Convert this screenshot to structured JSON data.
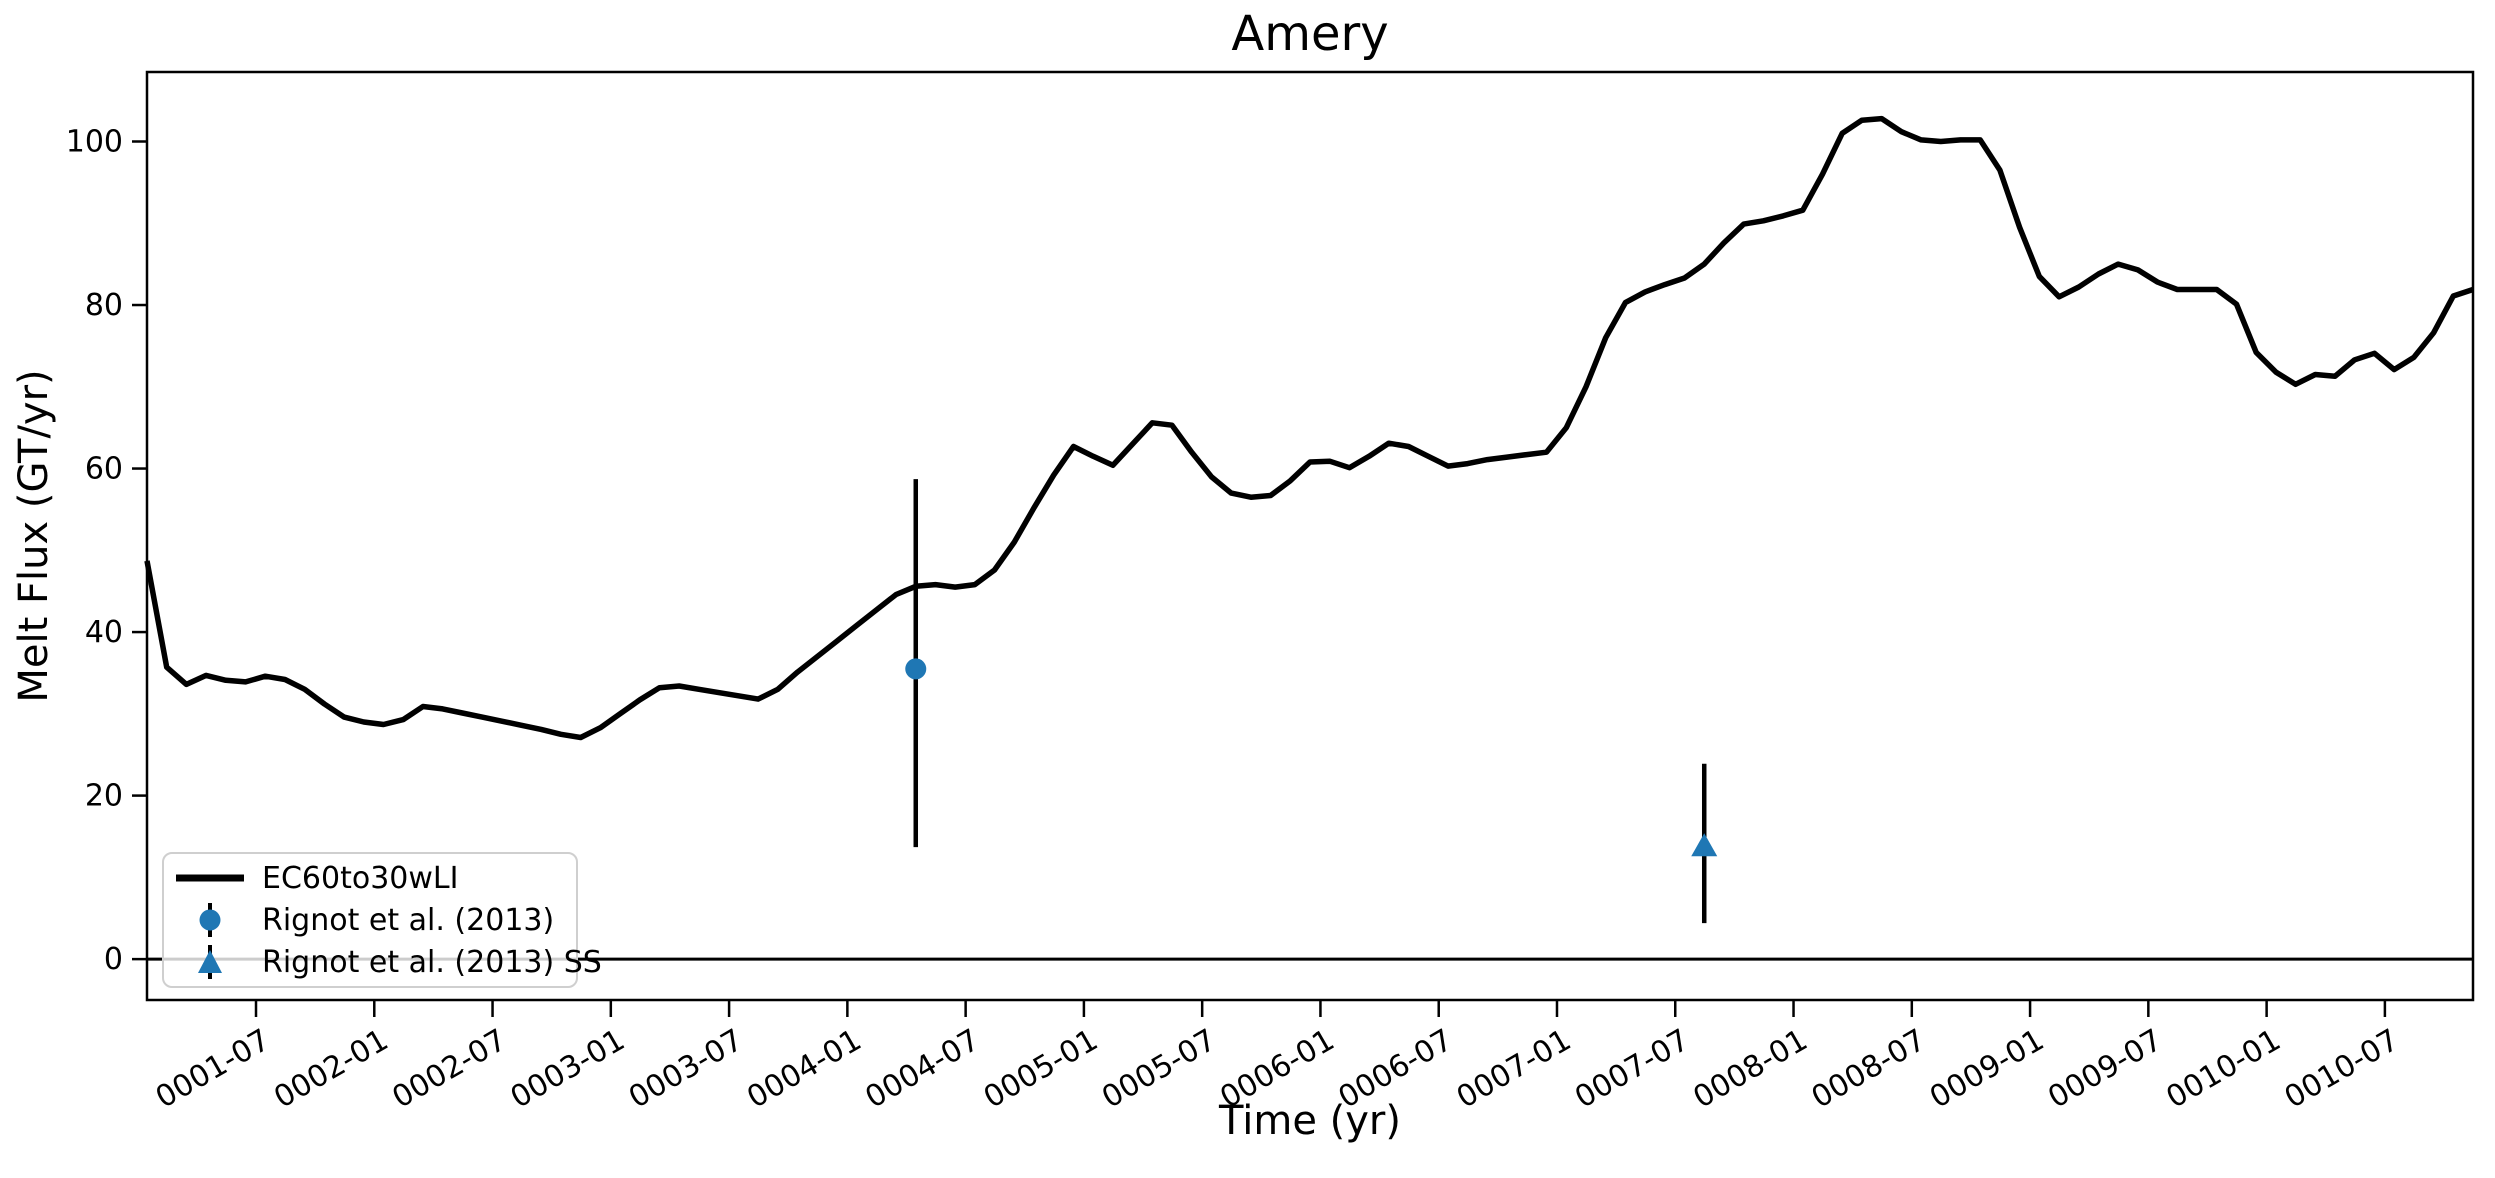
{
  "title": "Amery",
  "axes": {
    "xlabel": "Time (yr)",
    "ylabel": "Melt Flux (GT/yr)",
    "yticks": [
      0,
      20,
      40,
      60,
      80,
      100
    ],
    "xticks": [
      "0001-07",
      "0002-01",
      "0002-07",
      "0003-01",
      "0003-07",
      "0004-01",
      "0004-07",
      "0005-01",
      "0005-07",
      "0006-01",
      "0006-07",
      "0007-01",
      "0007-07",
      "0008-01",
      "0008-07",
      "0009-01",
      "0009-07",
      "0010-01",
      "0010-07"
    ]
  },
  "legend": {
    "items": [
      {
        "label": "EC60to30wLI",
        "marker": "line",
        "color": "#000000"
      },
      {
        "label": "Rignot et al. (2013)",
        "marker": "circle",
        "color": "#1f77b4"
      },
      {
        "label": "Rignot et al. (2013) SS",
        "marker": "triangle",
        "color": "#1f77b4"
      }
    ]
  },
  "chart_data": {
    "type": "line",
    "title": "Amery",
    "xlabel": "Time (yr)",
    "ylabel": "Melt Flux (GT/yr)",
    "x_start": "0001-01",
    "x_end": "0010-11",
    "x_frequency": "monthly",
    "ylim": [
      -5,
      108.5
    ],
    "grid": false,
    "zero_line": true,
    "legend_position": "lower left",
    "series": [
      {
        "name": "EC60to30wLI",
        "color": "#000000",
        "values": [
          48.7,
          35.7,
          33.6,
          34.7,
          34.1,
          33.9,
          34.6,
          34.2,
          33.0,
          31.2,
          29.6,
          29.0,
          28.7,
          29.3,
          30.9,
          30.6,
          30.1,
          29.6,
          29.1,
          28.6,
          28.1,
          27.5,
          27.1,
          28.3,
          30.0,
          31.7,
          33.2,
          33.4,
          33.0,
          32.6,
          32.2,
          31.8,
          33.0,
          35.1,
          37.0,
          38.9,
          40.8,
          42.7,
          44.6,
          45.6,
          45.8,
          45.5,
          45.8,
          47.6,
          51.0,
          55.2,
          59.2,
          62.7,
          61.5,
          60.4,
          63.0,
          65.6,
          65.3,
          62.0,
          59.0,
          57.0,
          56.5,
          56.7,
          58.5,
          60.8,
          60.9,
          60.1,
          61.5,
          63.1,
          62.7,
          61.5,
          60.3,
          60.6,
          61.1,
          61.4,
          61.7,
          62.0,
          65.0,
          70.0,
          76.0,
          80.3,
          81.6,
          82.5,
          83.3,
          85.0,
          87.6,
          89.9,
          90.3,
          90.9,
          91.6,
          96.0,
          101.0,
          102.6,
          102.8,
          101.2,
          100.2,
          100.0,
          100.2,
          100.2,
          96.5,
          89.5,
          83.5,
          81.0,
          82.2,
          83.8,
          85.0,
          84.3,
          82.8,
          81.9,
          81.9,
          81.9,
          80.1,
          74.2,
          71.8,
          70.3,
          71.5,
          71.3,
          73.3,
          74.1,
          72.1,
          73.6,
          76.6,
          81.1,
          81.9
        ]
      }
    ],
    "points": [
      {
        "name": "Rignot et al. (2013)",
        "marker": "circle",
        "color": "#1f77b4",
        "x": "0004-04",
        "y": 35.5,
        "err_minus": 21.8,
        "err_plus": 23.2
      },
      {
        "name": "Rignot et al. (2013) SS",
        "marker": "triangle",
        "color": "#1f77b4",
        "x": "0007-08",
        "y": 13.8,
        "err_minus": 9.4,
        "err_plus": 10.1
      }
    ]
  }
}
